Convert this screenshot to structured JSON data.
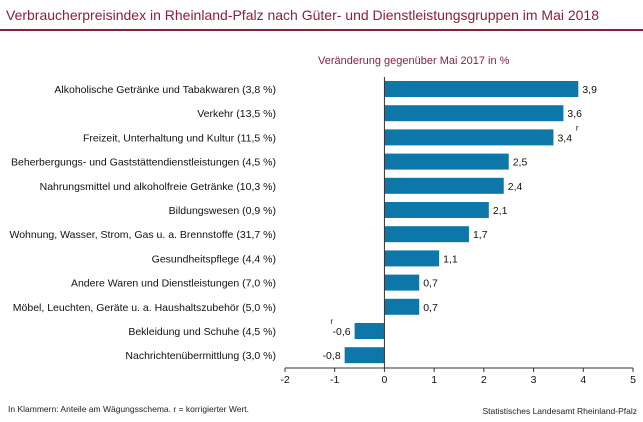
{
  "header": {
    "title": "Verbraucherpreisindex in Rheinland-Pfalz nach Güter- und Dienstleistungsgruppen im Mai 2018"
  },
  "footer": {
    "note": "In Klammern: Anteile am Wägungsschema. r = korrigierter Wert.",
    "source": "Statistisches Landesamt Rheinland-Pfalz"
  },
  "colors": {
    "bar": "#0d77aa",
    "title": "#8b1f3b"
  },
  "chart_data": {
    "type": "bar",
    "orientation": "horizontal",
    "title": "Verbraucherpreisindex in Rheinland-Pfalz nach Güter- und Dienstleistungsgruppen im Mai 2018",
    "subtitle": "Veränderung gegenüber Mai 2017 in %",
    "categories": [
      "Alkoholische Getränke und Tabakwaren (3,8 %)",
      "Verkehr (13,5 %)",
      "Freizeit, Unterhaltung und Kultur (11,5 %)",
      "Beherbergungs- und Gaststättendienstleistungen (4,5 %)",
      "Nahrungsmittel und alkoholfreie Getränke (10,3 %)",
      "Bildungswesen (0,9 %)",
      "Wohnung, Wasser, Strom, Gas u. a. Brennstoffe (31,7 %)",
      "Gesundheitspflege (4,4 %)",
      "Andere Waren und Dienstleistungen (7,0 %)",
      "Möbel, Leuchten, Geräte u. a. Haushaltszubehör  (5,0 %)",
      "Bekleidung und Schuhe (4,5 %)",
      "Nachrichtenübermittlung (3,0 %)"
    ],
    "values": [
      3.9,
      3.6,
      3.4,
      2.5,
      2.4,
      2.1,
      1.7,
      1.1,
      0.7,
      0.7,
      -0.6,
      -0.8
    ],
    "value_labels": [
      "3,9",
      "3,6",
      "3,4",
      "2,5",
      "2,4",
      "2,1",
      "1,7",
      "1,1",
      "0,7",
      "0,7",
      "-0,6",
      "-0,8"
    ],
    "corrected_flags": [
      "",
      "",
      "r",
      "",
      "",
      "",
      "",
      "",
      "",
      "",
      "r",
      ""
    ],
    "xlim": [
      -2,
      5
    ],
    "xticks": [
      -2,
      -1,
      0,
      1,
      2,
      3,
      4,
      5
    ],
    "xtick_labels": [
      "-2",
      "-1",
      "0",
      "1",
      "2",
      "3",
      "4",
      "5"
    ],
    "grid": false,
    "legend": "none"
  }
}
